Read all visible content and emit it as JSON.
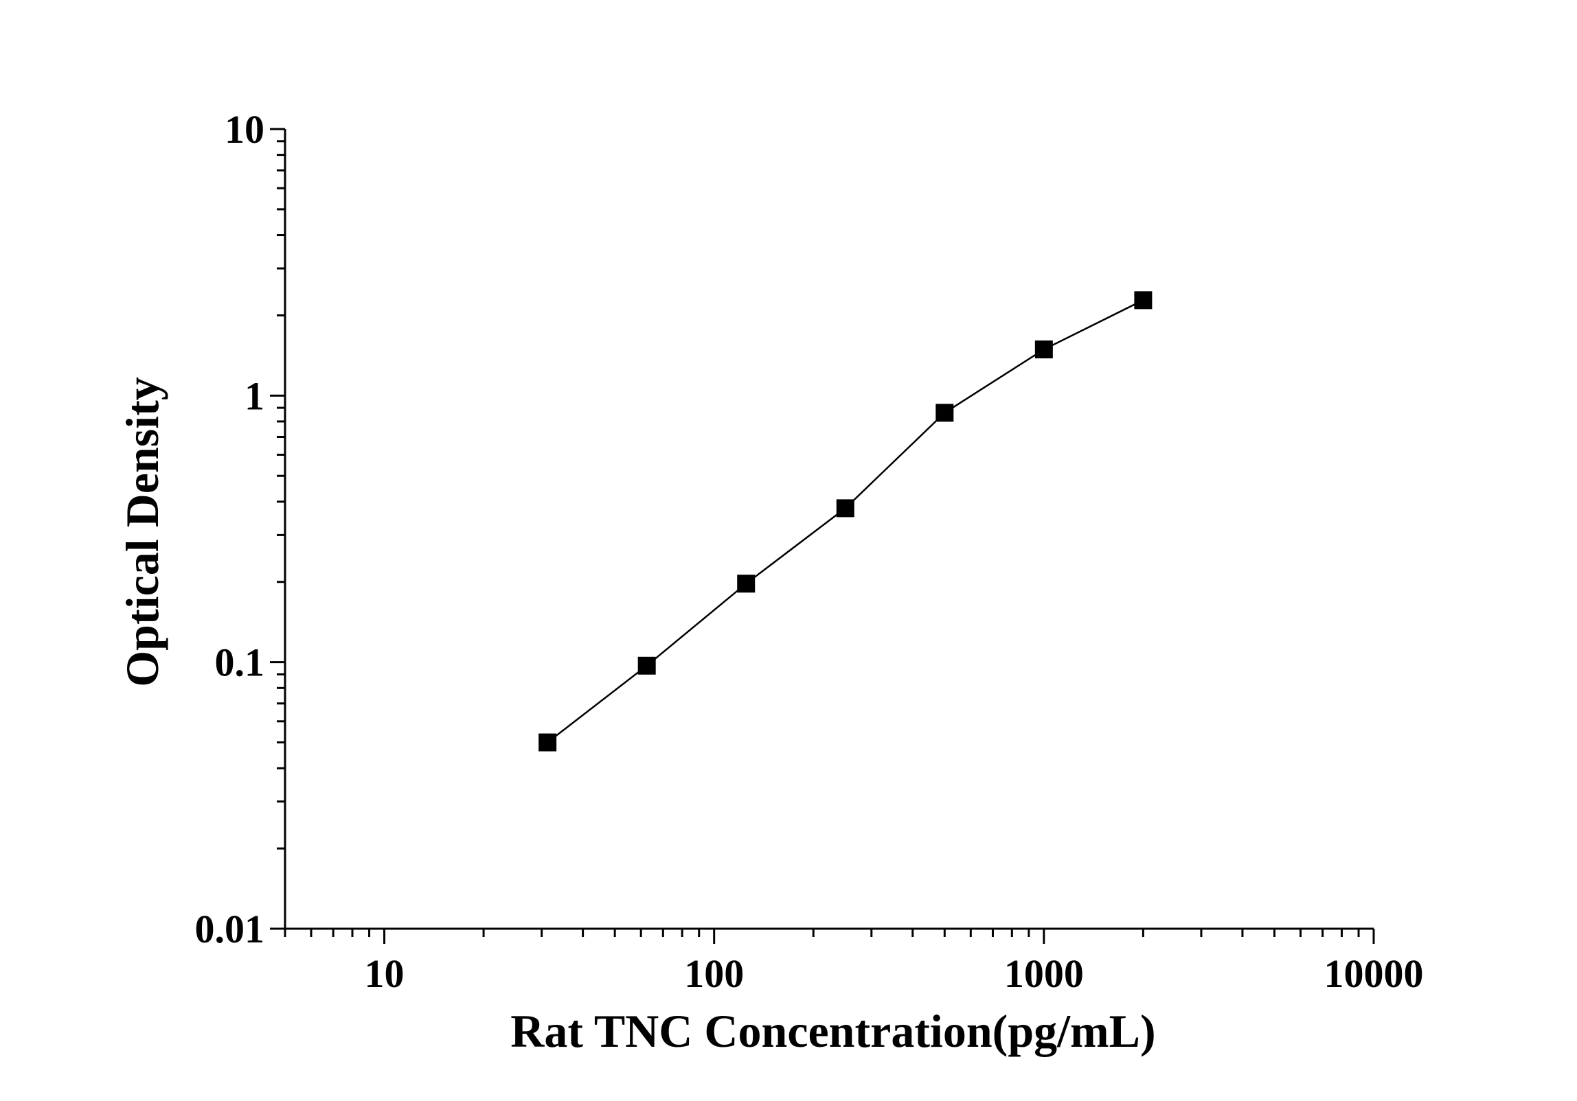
{
  "chart_data": {
    "type": "scatter",
    "title": "",
    "xlabel": "Rat TNC Concentration(pg/mL)",
    "ylabel": "Optical Density",
    "x_scale": "log",
    "y_scale": "log",
    "xlim": [
      5,
      10000
    ],
    "ylim": [
      0.01,
      10
    ],
    "x_ticks": [
      10,
      100,
      1000,
      10000
    ],
    "x_tick_labels": [
      "10",
      "100",
      "1000",
      "10000"
    ],
    "y_ticks": [
      0.01,
      0.1,
      1,
      10
    ],
    "y_tick_labels": [
      "0.01",
      "0.1",
      "1",
      "10"
    ],
    "grid": false,
    "legend": "none",
    "marker": "square",
    "connect_points": true,
    "color": "#000000",
    "series": [
      {
        "x": [
          31.25,
          62.5,
          125,
          250,
          500,
          1000,
          2000
        ],
        "y": [
          0.05,
          0.097,
          0.197,
          0.378,
          0.862,
          1.49,
          2.28
        ]
      }
    ]
  }
}
